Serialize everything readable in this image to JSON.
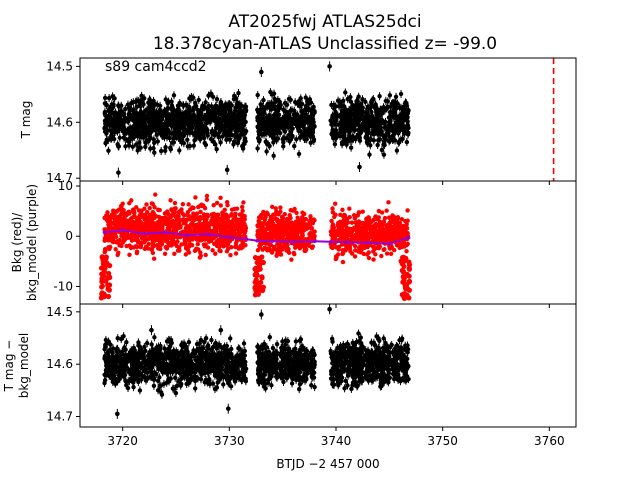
{
  "title_line1": "AT2025fwj  ATLAS25dci",
  "title_line2": "18.378cyan-ATLAS Unclassified z= -99.0",
  "chart_data": [
    {
      "type": "scatter",
      "panel": "top",
      "ylabel": "T mag",
      "annotation": "s89 cam4ccd2",
      "xlim": [
        3716.0,
        3762.5
      ],
      "ylim": [
        14.705,
        14.485
      ],
      "yinverted": true,
      "yticks": [
        14.5,
        14.6,
        14.7
      ],
      "marker_color": "#000000",
      "vline": {
        "x": 3760.4,
        "color": "#ff0000",
        "style": "dashed"
      },
      "segments": [
        {
          "x_start": 3718.3,
          "x_end": 3731.6,
          "center": 14.6,
          "spread": 0.045
        },
        {
          "x_start": 3732.6,
          "x_end": 3738.0,
          "center": 14.6,
          "spread": 0.045
        },
        {
          "x_start": 3739.5,
          "x_end": 3746.8,
          "center": 14.6,
          "spread": 0.045
        }
      ],
      "outliers": [
        {
          "x": 3733.0,
          "y": 14.51
        },
        {
          "x": 3739.4,
          "y": 14.5
        },
        {
          "x": 3719.6,
          "y": 14.69
        },
        {
          "x": 3729.8,
          "y": 14.685
        },
        {
          "x": 3742.2,
          "y": 14.68
        }
      ]
    },
    {
      "type": "scatter",
      "panel": "middle",
      "ylabel": "Bkg (red)/\nbkg_model (purple)",
      "xlim": [
        3716.0,
        3762.5
      ],
      "ylim": [
        -13.5,
        11.0
      ],
      "yticks": [
        -10,
        0,
        10
      ],
      "series": [
        {
          "name": "Bkg",
          "color": "#ff0000",
          "type": "points",
          "segments": [
            {
              "x_start": 3718.3,
              "x_end": 3731.6,
              "center": 1.5,
              "spread": 5.0
            },
            {
              "x_start": 3732.6,
              "x_end": 3738.0,
              "center": 0.8,
              "spread": 4.5
            },
            {
              "x_start": 3739.5,
              "x_end": 3746.8,
              "center": 0.5,
              "spread": 4.5
            }
          ],
          "edge_dips": [
            3718.4,
            3732.8,
            3746.5
          ]
        },
        {
          "name": "bkg_model",
          "color": "#9400d3",
          "type": "line",
          "x": [
            3718.3,
            3720.0,
            3722.0,
            3724.0,
            3726.0,
            3728.0,
            3730.0,
            3731.6,
            3732.6,
            3734.0,
            3736.0,
            3738.0,
            3739.5,
            3741.0,
            3743.0,
            3745.0,
            3746.8
          ],
          "y": [
            0.8,
            1.2,
            0.5,
            0.8,
            0.2,
            0.4,
            -0.2,
            -0.6,
            -0.9,
            -1.0,
            -1.1,
            -1.0,
            -1.1,
            -1.2,
            -1.3,
            -1.5,
            -0.3
          ]
        }
      ]
    },
    {
      "type": "scatter",
      "panel": "bottom",
      "ylabel": "T mag −\nbkg_model",
      "xlabel": "BTJD −2 457 000",
      "xlim": [
        3716.0,
        3762.5
      ],
      "ylim": [
        14.72,
        14.485
      ],
      "yinverted": true,
      "yticks": [
        14.5,
        14.6,
        14.7
      ],
      "xticks": [
        3720,
        3730,
        3740,
        3750,
        3760
      ],
      "marker_color": "#000000",
      "segments": [
        {
          "x_start": 3718.3,
          "x_end": 3731.6,
          "center": 14.6,
          "spread": 0.045
        },
        {
          "x_start": 3732.6,
          "x_end": 3738.0,
          "center": 14.6,
          "spread": 0.045
        },
        {
          "x_start": 3739.5,
          "x_end": 3746.8,
          "center": 14.6,
          "spread": 0.045
        }
      ],
      "outliers": [
        {
          "x": 3733.0,
          "y": 14.505
        },
        {
          "x": 3739.4,
          "y": 14.495
        },
        {
          "x": 3719.5,
          "y": 14.695
        },
        {
          "x": 3729.9,
          "y": 14.685
        },
        {
          "x": 3722.7,
          "y": 14.535
        },
        {
          "x": 3729.2,
          "y": 14.535
        }
      ]
    }
  ]
}
